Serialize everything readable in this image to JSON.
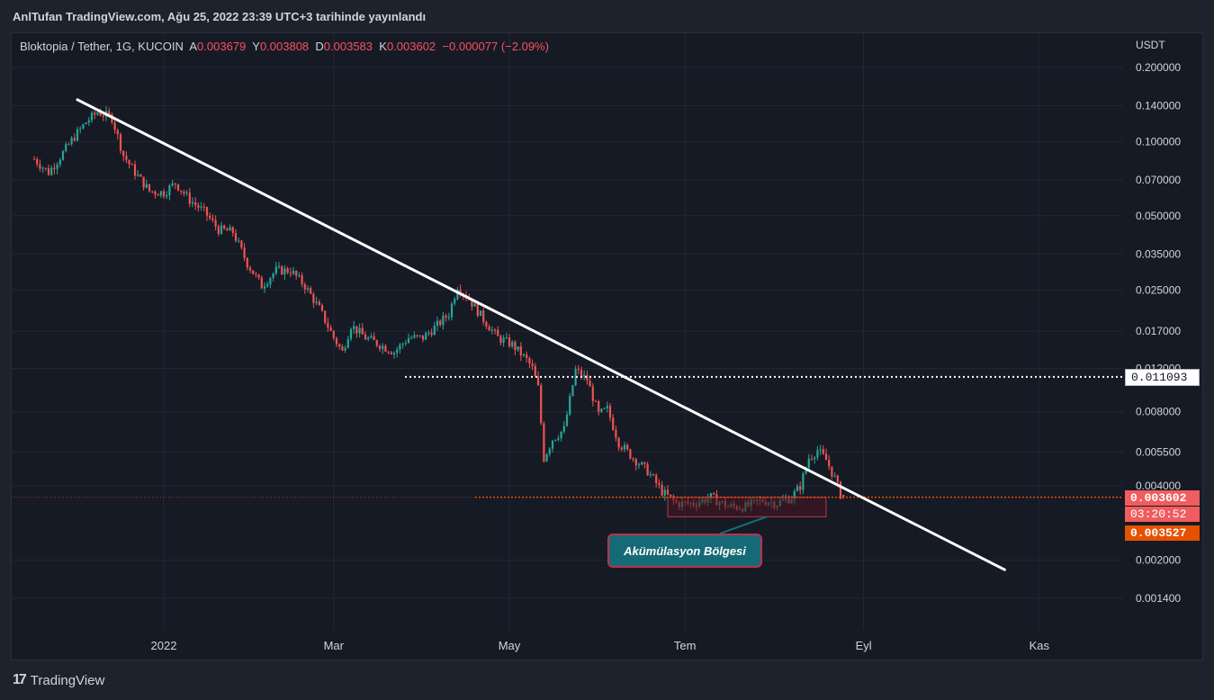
{
  "header": {
    "publish_text": "AnlTufan TradingView.com, Ağu 25, 2022 23:39 UTC+3 tarihinde yayınlandı"
  },
  "legend": {
    "symbol": "Bloktopia / Tether, 1G, KUCOIN",
    "open_label": "A",
    "open": "0.003679",
    "high_label": "Y",
    "high": "0.003808",
    "low_label": "D",
    "low": "0.003583",
    "close_label": "K",
    "close": "0.003602",
    "change": "−0.000077 (−2.09%)"
  },
  "axis": {
    "currency": "USDT"
  },
  "price_tags": {
    "resistance": "0.011093",
    "last_price": "0.003602",
    "countdown": "03:20:52",
    "prev_close": "0.003527"
  },
  "annotation": {
    "text": "Akümülasyon Bölgesi"
  },
  "footer": {
    "brand": "TradingView",
    "logo_glyph": "17"
  },
  "colors": {
    "background": "#161a25",
    "up": "#26a69a",
    "down": "#ef5350",
    "trendline": "#ffffff",
    "last_price_tag": "#f05d5e",
    "prev_close_tag": "#e65100",
    "annotation_fill": "#166a76",
    "zone_fill": "#4a1620"
  },
  "chart_data": {
    "type": "candlestick",
    "title": "Bloktopia / Tether, 1G, KUCOIN",
    "yscale": "log",
    "ylim": [
      0.00115,
      0.22
    ],
    "x_ticks": [
      {
        "label": "2022",
        "date": "2022-01-01"
      },
      {
        "label": "Mar",
        "date": "2022-03-01"
      },
      {
        "label": "May",
        "date": "2022-05-01"
      },
      {
        "label": "Tem",
        "date": "2022-07-01"
      },
      {
        "label": "Eyl",
        "date": "2022-09-01"
      },
      {
        "label": "Kas",
        "date": "2022-11-01"
      }
    ],
    "y_ticks": [
      "0.200000",
      "0.140000",
      "0.100000",
      "0.070000",
      "0.050000",
      "0.035000",
      "0.025000",
      "0.017000",
      "0.012000",
      "0.008000",
      "0.005500",
      "0.004000",
      "0.002000",
      "0.001400"
    ],
    "price_path": [
      [
        "2021-11-17",
        0.085
      ],
      [
        "2021-11-22",
        0.075
      ],
      [
        "2021-11-27",
        0.09
      ],
      [
        "2021-12-01",
        0.105
      ],
      [
        "2021-12-05",
        0.12
      ],
      [
        "2021-12-09",
        0.132
      ],
      [
        "2021-12-14",
        0.125
      ],
      [
        "2021-12-18",
        0.088
      ],
      [
        "2021-12-22",
        0.075
      ],
      [
        "2021-12-27",
        0.063
      ],
      [
        "2022-01-01",
        0.062
      ],
      [
        "2022-01-05",
        0.068
      ],
      [
        "2022-01-10",
        0.058
      ],
      [
        "2022-01-15",
        0.052
      ],
      [
        "2022-01-20",
        0.044
      ],
      [
        "2022-01-25",
        0.043
      ],
      [
        "2022-01-30",
        0.032
      ],
      [
        "2022-02-04",
        0.026
      ],
      [
        "2022-02-09",
        0.03
      ],
      [
        "2022-02-14",
        0.03
      ],
      [
        "2022-02-19",
        0.026
      ],
      [
        "2022-02-24",
        0.021
      ],
      [
        "2022-03-01",
        0.016
      ],
      [
        "2022-03-04",
        0.014
      ],
      [
        "2022-03-07",
        0.018
      ],
      [
        "2022-03-12",
        0.016
      ],
      [
        "2022-03-17",
        0.015
      ],
      [
        "2022-03-22",
        0.014
      ],
      [
        "2022-03-27",
        0.016
      ],
      [
        "2022-04-01",
        0.016
      ],
      [
        "2022-04-06",
        0.018
      ],
      [
        "2022-04-10",
        0.02
      ],
      [
        "2022-04-13",
        0.026
      ],
      [
        "2022-04-17",
        0.023
      ],
      [
        "2022-04-22",
        0.019
      ],
      [
        "2022-04-27",
        0.016
      ],
      [
        "2022-05-02",
        0.015
      ],
      [
        "2022-05-07",
        0.013
      ],
      [
        "2022-05-09",
        0.012
      ],
      [
        "2022-05-11",
        0.01
      ],
      [
        "2022-05-13",
        0.0052
      ],
      [
        "2022-05-16",
        0.0062
      ],
      [
        "2022-05-20",
        0.0068
      ],
      [
        "2022-05-24",
        0.0118
      ],
      [
        "2022-05-28",
        0.0108
      ],
      [
        "2022-06-01",
        0.0078
      ],
      [
        "2022-06-04",
        0.0082
      ],
      [
        "2022-06-08",
        0.006
      ],
      [
        "2022-06-13",
        0.0052
      ],
      [
        "2022-06-18",
        0.0046
      ],
      [
        "2022-06-23",
        0.0038
      ],
      [
        "2022-06-28",
        0.0034
      ],
      [
        "2022-07-04",
        0.0034
      ],
      [
        "2022-07-10",
        0.0036
      ],
      [
        "2022-07-16",
        0.0033
      ],
      [
        "2022-07-22",
        0.0033
      ],
      [
        "2022-07-28",
        0.0035
      ],
      [
        "2022-08-02",
        0.0034
      ],
      [
        "2022-08-07",
        0.0036
      ],
      [
        "2022-08-10",
        0.004
      ],
      [
        "2022-08-13",
        0.0052
      ],
      [
        "2022-08-16",
        0.0056
      ],
      [
        "2022-08-19",
        0.0051
      ],
      [
        "2022-08-22",
        0.0043
      ],
      [
        "2022-08-24",
        0.0037
      ],
      [
        "2022-08-25",
        0.003602
      ]
    ],
    "last_candle": {
      "date": "2022-08-25",
      "open": 0.003679,
      "high": 0.003808,
      "low": 0.003583,
      "close": 0.003602
    },
    "trendline": [
      {
        "date": "2021-12-02",
        "price": 0.148
      },
      {
        "date": "2022-10-20",
        "price": 0.00183
      }
    ],
    "resistance_level": 0.011093,
    "last_price_line": 0.003602,
    "accumulation_zone": {
      "date_from": "2022-06-25",
      "date_to": "2022-08-19",
      "price_high": 0.0036,
      "price_low": 0.003,
      "label": "Akümülasyon Bölgesi"
    }
  }
}
